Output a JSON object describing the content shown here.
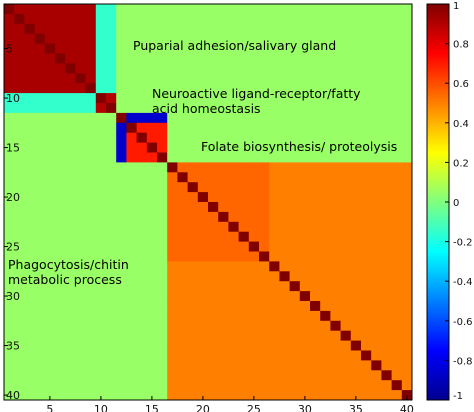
{
  "chart_data": {
    "type": "heatmap",
    "title": "",
    "xlabel": "",
    "ylabel": "",
    "n": 40,
    "x_ticks": [
      5,
      10,
      15,
      20,
      25,
      30,
      35,
      40
    ],
    "y_ticks": [
      5,
      10,
      15,
      20,
      25,
      30,
      35,
      40
    ],
    "colorbar": {
      "range": [
        -1,
        1
      ],
      "colormap": "jet",
      "ticks": [
        1,
        0.8,
        0.6,
        0.4,
        0.2,
        0,
        -0.2,
        -0.4,
        -0.6,
        -0.8,
        -1
      ],
      "tick_labels": [
        "1",
        "0.8",
        "0.6",
        "0.4",
        "0.2",
        "0",
        "-0.2",
        "-0.4",
        "-0.6",
        "-0.8",
        "-1"
      ]
    },
    "diagonal_value": 1,
    "background_value": 0.05,
    "clusters": [
      {
        "label": "Puparial adhesion/salivary gland",
        "rows": [
          1,
          9
        ],
        "value": 0.92
      },
      {
        "label": "Neuroactive ligand-receptor/fatty\nacid homeostasis",
        "rows": [
          10,
          11
        ],
        "value": 0.9
      },
      {
        "label": "Folate biosynthesis/ proteolysis",
        "rows": [
          12,
          16
        ],
        "value": 0.7
      },
      {
        "label": "Phagocytosis/chitin\nmetabolic process",
        "rows": [
          17,
          40
        ],
        "value": 0.5
      }
    ],
    "special_blocks": [
      {
        "rows": [
          1,
          9
        ],
        "cols": [
          10,
          11
        ],
        "value": -0.15
      },
      {
        "rows": [
          10,
          11
        ],
        "cols": [
          1,
          9
        ],
        "value": -0.15
      },
      {
        "rows": [
          12,
          16
        ],
        "cols": [
          12,
          12
        ],
        "value": -0.85
      },
      {
        "rows": [
          12,
          12
        ],
        "cols": [
          12,
          16
        ],
        "value": -0.85
      },
      {
        "rows": [
          17,
          26
        ],
        "cols": [
          17,
          26
        ],
        "value": 0.55
      }
    ]
  }
}
